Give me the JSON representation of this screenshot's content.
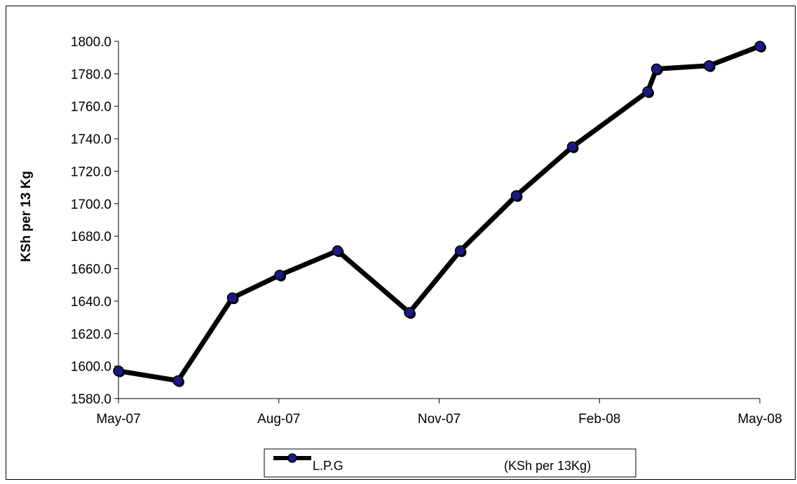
{
  "chart_data": {
    "type": "line",
    "ylabel": "KSh per 13 Kg",
    "xlabel": "",
    "title": "",
    "ylim": [
      1580,
      1800
    ],
    "y_ticks": [
      "1800.0",
      "1780.0",
      "1760.0",
      "1740.0",
      "1720.0",
      "1700.0",
      "1680.0",
      "1660.0",
      "1640.0",
      "1620.0",
      "1600.0",
      "1580.0"
    ],
    "x_ticks": [
      "May-07",
      "Aug-07",
      "Nov-07",
      "Feb-08",
      "May-08"
    ],
    "legend": {
      "label": "L.P.G",
      "unit": "(KSh per 13Kg)",
      "position": "bottom"
    },
    "series": [
      {
        "name": "L.P.G",
        "x": [
          "2007-05-01",
          "2007-06-04",
          "2007-07-05",
          "2007-08-01",
          "2007-09-03",
          "2007-10-14",
          "2007-11-12",
          "2007-12-14",
          "2008-01-15",
          "2008-02-27",
          "2008-03-03",
          "2008-04-02",
          "2008-05-01"
        ],
        "values": [
          1597,
          1591,
          1642,
          1656,
          1671,
          1633,
          1671,
          1705,
          1735,
          1769,
          1783,
          1785,
          1797
        ]
      }
    ],
    "colors": {
      "line": "#000000",
      "marker_fill": "#1a1a80",
      "marker_stroke": "#000000"
    }
  }
}
